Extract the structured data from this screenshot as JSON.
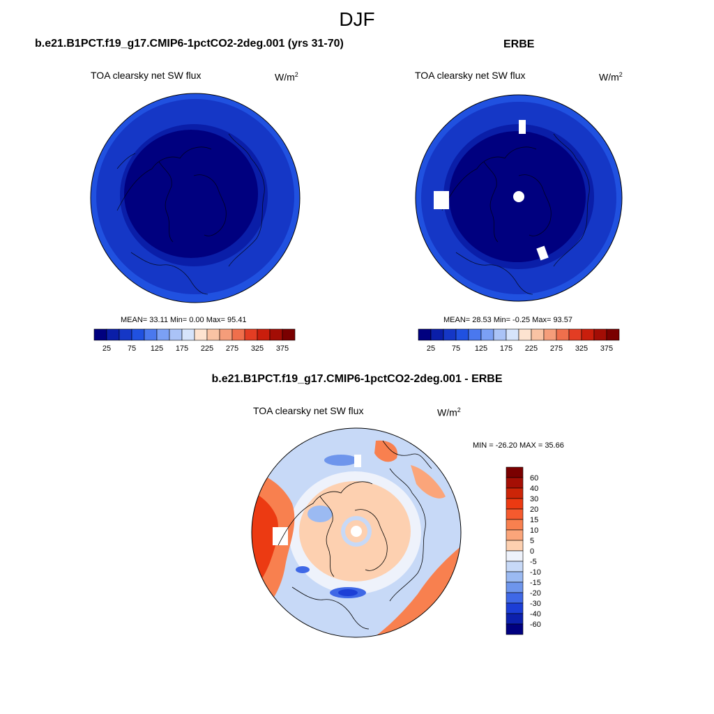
{
  "figure": {
    "title": "DJF"
  },
  "panels": [
    {
      "title": "b.e21.B1PCT.f19_g17.CMIP6-1pctCO2-2deg.001 (yrs 31-70)",
      "variable": "TOA clearsky net SW flux",
      "units": "W/m",
      "units_exp": "2",
      "stats": "MEAN=  33.11  Min=   0.00  Max=  95.41"
    },
    {
      "title": "ERBE",
      "variable": "TOA clearsky net SW flux",
      "units": "W/m",
      "units_exp": "2",
      "stats": "MEAN=  28.53  Min=  -0.25  Max=  93.57"
    },
    {
      "title": "b.e21.B1PCT.f19_g17.CMIP6-1pctCO2-2deg.001 - ERBE",
      "variable": "TOA clearsky net SW flux",
      "units": "W/m",
      "units_exp": "2",
      "stats": "MIN = -26.20 MAX =  35.66"
    }
  ],
  "chart_data": [
    {
      "type": "heatmap",
      "projection": "north-polar-stereographic",
      "title": "b.e21.B1PCT.f19_g17.CMIP6-1pctCO2-2deg.001 (yrs 31-70)",
      "variable": "TOA clearsky net SW flux",
      "units": "W/m^2",
      "mean": 33.11,
      "min": 0.0,
      "max": 95.41,
      "colorbar": {
        "orientation": "horizontal",
        "levels": [
          0,
          25,
          50,
          75,
          100,
          125,
          150,
          175,
          200,
          225,
          250,
          275,
          300,
          325,
          350,
          375,
          400
        ],
        "tick_labels": [
          "25",
          "75",
          "125",
          "175",
          "225",
          "275",
          "325",
          "375"
        ],
        "colors": [
          "#00007f",
          "#0a1ea8",
          "#1537c6",
          "#2051e0",
          "#4a78ee",
          "#7ba0f5",
          "#aac3f7",
          "#d6e4fb",
          "#fde3d0",
          "#f9c3a4",
          "#f59d7a",
          "#ef6f4c",
          "#e33d23",
          "#c91e0c",
          "#a30d05",
          "#7a0000"
        ]
      },
      "field": "core mostly below 25 (Arctic, polar night); rings 25-75 over ocean toward 40N edge"
    },
    {
      "type": "heatmap",
      "projection": "north-polar-stereographic",
      "title": "ERBE",
      "variable": "TOA clearsky net SW flux",
      "units": "W/m^2",
      "mean": 28.53,
      "min": -0.25,
      "max": 93.57,
      "colorbar": {
        "orientation": "horizontal",
        "levels": [
          0,
          25,
          50,
          75,
          100,
          125,
          150,
          175,
          200,
          225,
          250,
          275,
          300,
          325,
          350,
          375,
          400
        ],
        "tick_labels": [
          "25",
          "75",
          "125",
          "175",
          "225",
          "275",
          "325",
          "375"
        ],
        "colors": [
          "#00007f",
          "#0a1ea8",
          "#1537c6",
          "#2051e0",
          "#4a78ee",
          "#7ba0f5",
          "#aac3f7",
          "#d6e4fb",
          "#fde3d0",
          "#f9c3a4",
          "#f59d7a",
          "#ef6f4c",
          "#e33d23",
          "#c91e0c",
          "#a30d05",
          "#7a0000"
        ]
      },
      "missing_regions": [
        "pole",
        "North Atlantic patch",
        "North Pacific patch",
        "Central Asia patch"
      ]
    },
    {
      "type": "heatmap",
      "projection": "north-polar-stereographic",
      "title": "b.e21.B1PCT.f19_g17.CMIP6-1pctCO2-2deg.001 - ERBE",
      "variable": "TOA clearsky net SW flux",
      "units": "W/m^2",
      "min": -26.2,
      "max": 35.66,
      "colorbar": {
        "orientation": "vertical",
        "tick_labels": [
          "60",
          "40",
          "30",
          "20",
          "15",
          "10",
          "5",
          "0",
          "-5",
          "-10",
          "-15",
          "-20",
          "-30",
          "-40",
          "-60"
        ],
        "colors": [
          "#7a0000",
          "#a50f05",
          "#cc2508",
          "#ec3a12",
          "#f55a2e",
          "#f8804f",
          "#fba57a",
          "#fdd0b0",
          "#eef2fb",
          "#c7d9f7",
          "#9bbaf2",
          "#6e95ec",
          "#3f68e6",
          "#1c3ed6",
          "#0c20ad",
          "#000080"
        ]
      },
      "field": "positive 5-40 over North Pacific and North Atlantic margins; near 0 (+/-5) over Arctic; negative -10 to -40 spots near Greenland, Siberia coast"
    }
  ]
}
